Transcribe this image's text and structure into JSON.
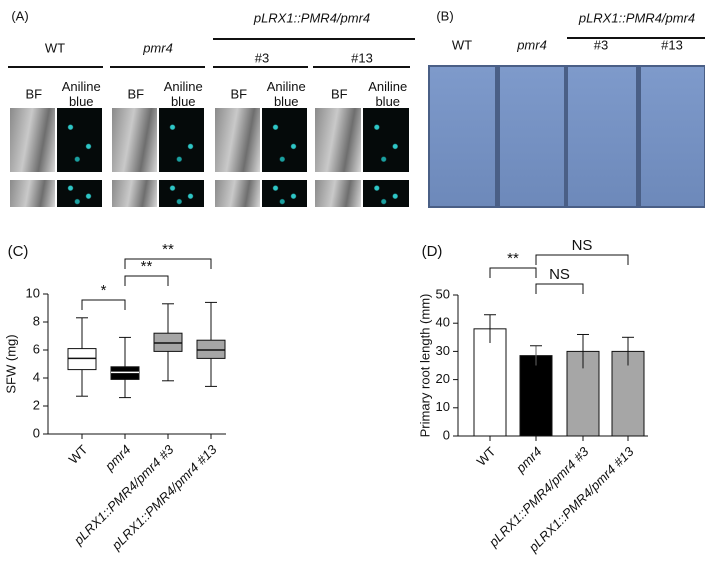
{
  "panel_a": {
    "label": "(A)",
    "genotypes": [
      "WT",
      "pmr4"
    ],
    "construct": "pLRX1::PMR4/pmr4",
    "lines": [
      "#3",
      "#13"
    ],
    "channels": [
      "BF",
      "Aniline blue"
    ]
  },
  "panel_b": {
    "label": "(B)",
    "genotypes": [
      "WT",
      "pmr4"
    ],
    "construct": "pLRX1::PMR4/pmr4",
    "lines": [
      "#3",
      "#13"
    ]
  },
  "chart_data": [
    {
      "type": "box",
      "panel_label": "(C)",
      "y_label": "SFW (mg)",
      "categories": [
        "WT",
        "pmr4",
        "pLRX1::PMR4/pmr4 #3",
        "pLRX1::PMR4/pmr4 #13"
      ],
      "boxes": [
        {
          "min": 2.7,
          "q1": 4.6,
          "median": 5.4,
          "q3": 6.1,
          "max": 8.3
        },
        {
          "min": 2.6,
          "q1": 3.9,
          "median": 4.4,
          "q3": 4.8,
          "max": 6.9
        },
        {
          "min": 3.8,
          "q1": 5.9,
          "median": 6.5,
          "q3": 7.2,
          "max": 9.3
        },
        {
          "min": 3.4,
          "q1": 5.4,
          "median": 6.0,
          "q3": 6.7,
          "max": 9.4
        }
      ],
      "colors": [
        "#ffffff",
        "#000000",
        "#a6a6a6",
        "#a6a6a6"
      ],
      "ylim": [
        0,
        10
      ],
      "yticks": [
        0,
        2,
        4,
        6,
        8,
        10
      ],
      "annotations": [
        "*",
        "**",
        "**"
      ]
    },
    {
      "type": "bar",
      "panel_label": "(D)",
      "y_label": "Primary root length (mm)",
      "categories": [
        "WT",
        "pmr4",
        "pLRX1::PMR4/pmr4 #3",
        "pLRX1::PMR4/pmr4 #13"
      ],
      "values": [
        38,
        28.5,
        30,
        30
      ],
      "errors": [
        5,
        3.5,
        6,
        5
      ],
      "colors": [
        "#ffffff",
        "#000000",
        "#a6a6a6",
        "#a6a6a6"
      ],
      "ylim": [
        0,
        50
      ],
      "yticks": [
        0,
        10,
        20,
        30,
        40,
        50
      ],
      "annotations": [
        "**",
        "NS",
        "NS"
      ]
    }
  ]
}
